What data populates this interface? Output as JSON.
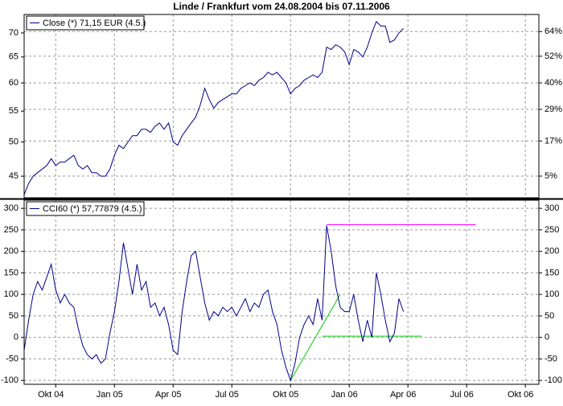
{
  "chart_data": [
    {
      "type": "line",
      "title": "Linde / Frankfurt vom 24.08.2004 bis 07.11.2006",
      "yscale": "log",
      "ylim": [
        42.1,
        74.1
      ],
      "yticks": [
        45,
        50,
        55,
        60,
        65,
        70
      ],
      "y2scale": "log-percent",
      "y2lim": [
        -1.8,
        72.9
      ],
      "y2ticks": [
        {
          "value": 5,
          "label": "5%"
        },
        {
          "value": 17,
          "label": "17%"
        },
        {
          "value": 29,
          "label": "29%"
        },
        {
          "value": 40,
          "label": "40%"
        },
        {
          "value": 52,
          "label": "52%"
        },
        {
          "value": 64,
          "label": "64%"
        }
      ],
      "grid": true,
      "series": [
        {
          "name": "Close (*) 71,15 EUR (4.5.)",
          "color": "#00008b",
          "values": [
            42.5,
            44,
            45,
            45.5,
            46,
            46.5,
            47.5,
            46.5,
            47,
            47,
            47.5,
            48,
            46.5,
            46,
            46.5,
            45.5,
            45.5,
            45,
            45,
            46,
            48,
            49.5,
            49,
            50,
            51,
            51,
            52,
            52,
            51.5,
            52.5,
            53,
            52,
            53,
            50,
            49.5,
            51,
            52,
            53,
            54,
            56,
            59,
            57,
            55.5,
            56.5,
            57,
            57.5,
            58,
            58,
            59,
            59.5,
            60,
            59.5,
            60.5,
            61,
            62,
            61.5,
            62,
            61,
            60,
            58,
            59,
            59.5,
            60.5,
            61,
            61.5,
            61,
            62,
            67,
            66.5,
            67.5,
            67,
            66,
            63.5,
            66.5,
            66,
            65,
            67,
            70,
            72.5,
            71.5,
            71.5,
            68,
            68.5,
            70,
            71,
            null,
            null,
            null,
            null,
            null,
            null,
            null,
            null,
            null,
            null,
            null,
            null,
            null,
            null,
            null,
            null,
            null,
            null,
            null,
            null,
            null,
            null,
            null,
            null,
            null,
            null,
            null,
            null,
            null,
            null
          ]
        }
      ]
    },
    {
      "type": "line",
      "ylim": [
        -109,
        319
      ],
      "yticks": [
        -100,
        -50,
        0,
        50,
        100,
        150,
        200,
        250,
        300
      ],
      "grid": true,
      "categories": [
        null,
        null,
        null,
        null,
        null,
        null,
        null,
        "Okt 04",
        null,
        null,
        null,
        null,
        null,
        null,
        null,
        null,
        null,
        null,
        null,
        null,
        "Jan 05",
        null,
        null,
        null,
        null,
        null,
        null,
        null,
        null,
        null,
        null,
        null,
        null,
        "Apr 05",
        null,
        null,
        null,
        null,
        null,
        null,
        null,
        null,
        null,
        null,
        null,
        null,
        "Jul 05",
        null,
        null,
        null,
        null,
        null,
        null,
        null,
        null,
        null,
        null,
        null,
        null,
        "Okt 05",
        null,
        null,
        null,
        null,
        null,
        null,
        null,
        null,
        null,
        null,
        null,
        null,
        "Jan 06",
        null,
        null,
        null,
        null,
        null,
        null,
        null,
        null,
        null,
        null,
        null,
        null,
        "Apr 06",
        null,
        null,
        null,
        null,
        null,
        null,
        null,
        null,
        null,
        null,
        null,
        null,
        "Jul 06",
        null,
        null,
        null,
        null,
        null,
        null,
        null,
        null,
        null,
        null,
        null,
        null,
        "Okt 06",
        null,
        null,
        null
      ],
      "series": [
        {
          "name": "CCI60 (*) 57,77879 (4.5.)",
          "color": "#00008b",
          "values": [
            -30,
            40,
            100,
            130,
            110,
            140,
            170,
            110,
            80,
            100,
            80,
            70,
            20,
            -20,
            -40,
            -50,
            -40,
            -60,
            -50,
            10,
            60,
            130,
            220,
            160,
            100,
            170,
            110,
            130,
            70,
            80,
            50,
            70,
            30,
            -30,
            -40,
            60,
            130,
            190,
            200,
            140,
            80,
            40,
            60,
            50,
            70,
            60,
            70,
            50,
            70,
            90,
            60,
            80,
            70,
            100,
            110,
            60,
            30,
            -30,
            -70,
            -100,
            -60,
            0,
            30,
            50,
            30,
            90,
            40,
            260,
            200,
            120,
            70,
            60,
            60,
            100,
            40,
            -10,
            40,
            0,
            150,
            100,
            40,
            -10,
            10,
            90,
            60,
            null,
            null,
            null,
            null,
            null,
            null,
            null,
            null,
            null,
            null,
            null,
            null,
            null,
            null,
            null,
            null,
            null,
            null,
            null,
            null,
            null,
            null,
            null,
            null,
            null,
            null,
            null,
            null,
            null,
            null
          ]
        }
      ],
      "trendlines": [
        {
          "color": "#ff00ff",
          "start": 67,
          "end": 100,
          "values": [
            262,
            262
          ]
        },
        {
          "color": "#00cc00",
          "start": 59,
          "end": 70,
          "values": [
            -100,
            100
          ]
        },
        {
          "color": "#00cc00",
          "start": 66,
          "end": 88,
          "values": [
            3,
            3
          ]
        }
      ]
    }
  ]
}
